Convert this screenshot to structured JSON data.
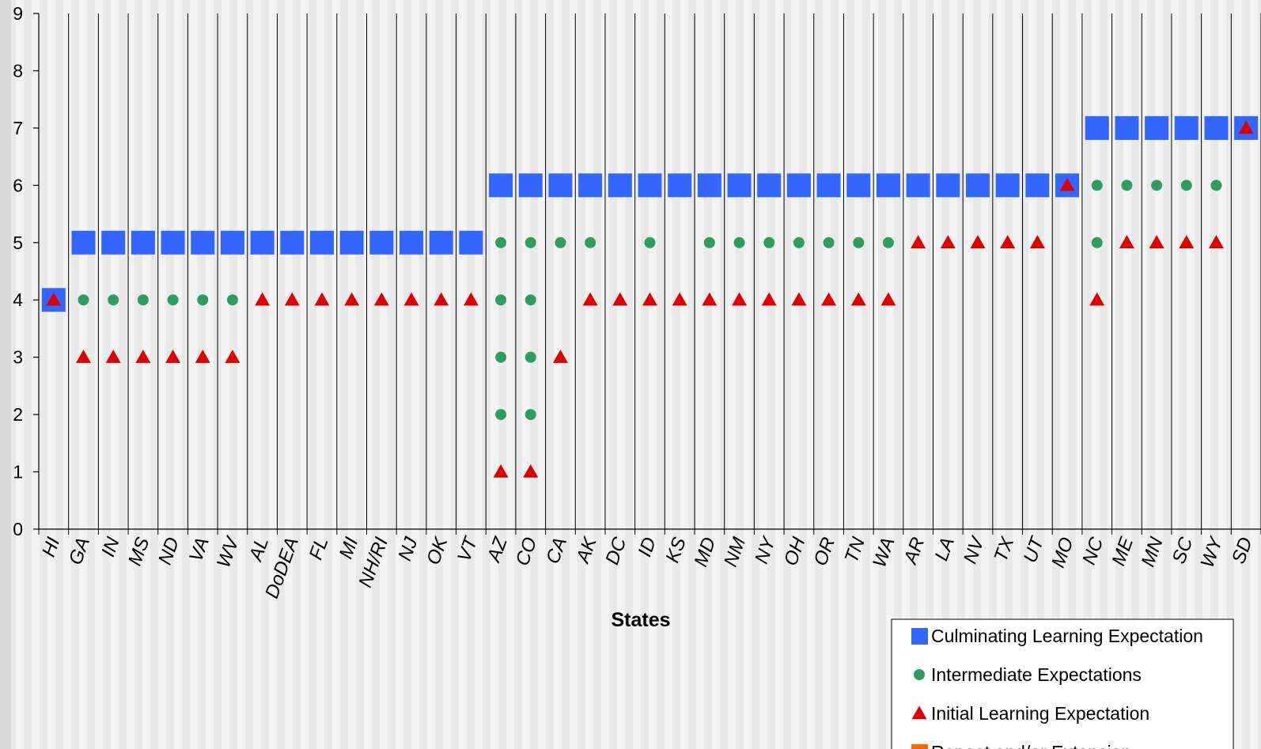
{
  "chart_data": {
    "type": "scatter",
    "xlabel": "States",
    "ylabel": "",
    "ylim": [
      0,
      9
    ],
    "yticks": [
      0,
      1,
      2,
      3,
      4,
      5,
      6,
      7,
      8,
      9
    ],
    "grid": "vertical lines between categories",
    "legend_position": "bottom-right",
    "categories": [
      "HI",
      "GA",
      "IN",
      "MS",
      "ND",
      "VA",
      "WV",
      "AL",
      "DoDEA",
      "FL",
      "MI",
      "NH/RI",
      "NJ",
      "OK",
      "VT",
      "AZ",
      "CO",
      "CA",
      "AK",
      "DC",
      "ID",
      "KS",
      "MD",
      "NM",
      "NY",
      "OH",
      "OR",
      "TN",
      "WA",
      "AR",
      "LA",
      "NV",
      "TX",
      "UT",
      "MO",
      "NC",
      "ME",
      "MN",
      "SC",
      "WY",
      "SD"
    ],
    "series": [
      {
        "name": "Culminating Learning Expectation",
        "marker": "square",
        "color": "#3366ff",
        "points": [
          [
            "HI",
            4
          ],
          [
            "GA",
            5
          ],
          [
            "IN",
            5
          ],
          [
            "MS",
            5
          ],
          [
            "ND",
            5
          ],
          [
            "VA",
            5
          ],
          [
            "WV",
            5
          ],
          [
            "AL",
            5
          ],
          [
            "DoDEA",
            5
          ],
          [
            "FL",
            5
          ],
          [
            "MI",
            5
          ],
          [
            "NH/RI",
            5
          ],
          [
            "NJ",
            5
          ],
          [
            "OK",
            5
          ],
          [
            "VT",
            5
          ],
          [
            "AZ",
            6
          ],
          [
            "CO",
            6
          ],
          [
            "CA",
            6
          ],
          [
            "AK",
            6
          ],
          [
            "DC",
            6
          ],
          [
            "ID",
            6
          ],
          [
            "KS",
            6
          ],
          [
            "MD",
            6
          ],
          [
            "NM",
            6
          ],
          [
            "NY",
            6
          ],
          [
            "OH",
            6
          ],
          [
            "OR",
            6
          ],
          [
            "TN",
            6
          ],
          [
            "WA",
            6
          ],
          [
            "AR",
            6
          ],
          [
            "LA",
            6
          ],
          [
            "NV",
            6
          ],
          [
            "TX",
            6
          ],
          [
            "UT",
            6
          ],
          [
            "MO",
            6
          ],
          [
            "NC",
            7
          ],
          [
            "ME",
            7
          ],
          [
            "MN",
            7
          ],
          [
            "SC",
            7
          ],
          [
            "WY",
            7
          ],
          [
            "SD",
            7
          ]
        ]
      },
      {
        "name": "Intermediate Expectations",
        "marker": "circle",
        "color": "#2e9e5e",
        "points": [
          [
            "GA",
            4
          ],
          [
            "IN",
            4
          ],
          [
            "MS",
            4
          ],
          [
            "ND",
            4
          ],
          [
            "VA",
            4
          ],
          [
            "WV",
            4
          ],
          [
            "AZ",
            5
          ],
          [
            "AZ",
            4
          ],
          [
            "AZ",
            3
          ],
          [
            "AZ",
            2
          ],
          [
            "CO",
            5
          ],
          [
            "CO",
            4
          ],
          [
            "CO",
            3
          ],
          [
            "CO",
            2
          ],
          [
            "CA",
            5
          ],
          [
            "AK",
            5
          ],
          [
            "ID",
            5
          ],
          [
            "MD",
            5
          ],
          [
            "NM",
            5
          ],
          [
            "NY",
            5
          ],
          [
            "OH",
            5
          ],
          [
            "OR",
            5
          ],
          [
            "TN",
            5
          ],
          [
            "WA",
            5
          ],
          [
            "NC",
            6
          ],
          [
            "NC",
            5
          ],
          [
            "ME",
            6
          ],
          [
            "MN",
            6
          ],
          [
            "SC",
            6
          ],
          [
            "WY",
            6
          ]
        ]
      },
      {
        "name": "Initial Learning Expectation",
        "marker": "triangle",
        "color": "#dd0000",
        "points": [
          [
            "HI",
            4
          ],
          [
            "GA",
            3
          ],
          [
            "IN",
            3
          ],
          [
            "MS",
            3
          ],
          [
            "ND",
            3
          ],
          [
            "VA",
            3
          ],
          [
            "WV",
            3
          ],
          [
            "AL",
            4
          ],
          [
            "DoDEA",
            4
          ],
          [
            "FL",
            4
          ],
          [
            "MI",
            4
          ],
          [
            "NH/RI",
            4
          ],
          [
            "NJ",
            4
          ],
          [
            "OK",
            4
          ],
          [
            "VT",
            4
          ],
          [
            "AZ",
            1
          ],
          [
            "CO",
            1
          ],
          [
            "CA",
            3
          ],
          [
            "AK",
            4
          ],
          [
            "DC",
            4
          ],
          [
            "ID",
            4
          ],
          [
            "KS",
            4
          ],
          [
            "MD",
            4
          ],
          [
            "NM",
            4
          ],
          [
            "NY",
            4
          ],
          [
            "OH",
            4
          ],
          [
            "OR",
            4
          ],
          [
            "TN",
            4
          ],
          [
            "WA",
            4
          ],
          [
            "AR",
            5
          ],
          [
            "LA",
            5
          ],
          [
            "NV",
            5
          ],
          [
            "TX",
            5
          ],
          [
            "UT",
            5
          ],
          [
            "MO",
            6
          ],
          [
            "NC",
            4
          ],
          [
            "ME",
            5
          ],
          [
            "MN",
            5
          ],
          [
            "SC",
            5
          ],
          [
            "WY",
            5
          ],
          [
            "SD",
            7
          ]
        ]
      },
      {
        "name": "Repeat and/or Extension",
        "marker": "square",
        "color": "#ff6600",
        "points": []
      }
    ]
  }
}
